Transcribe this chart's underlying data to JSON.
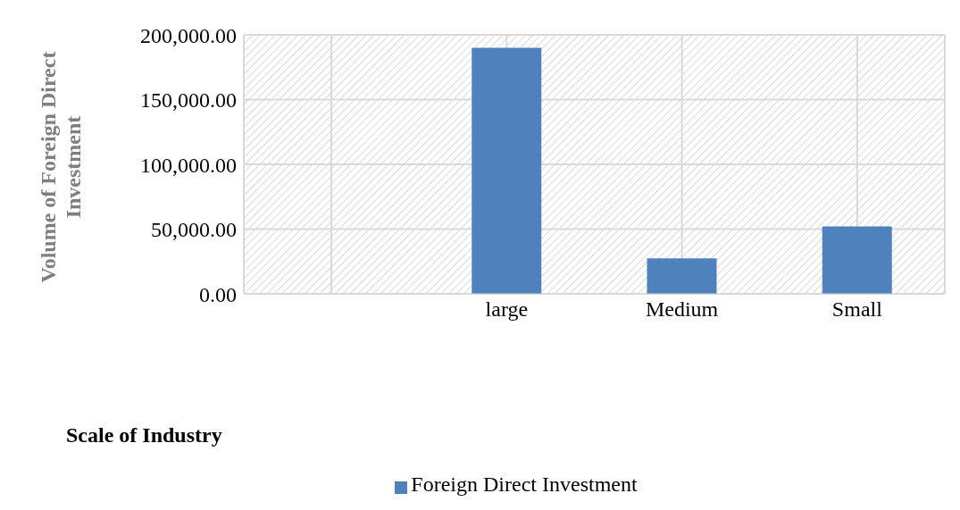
{
  "chart_data": {
    "type": "bar",
    "xlabel": "Scale of Industry",
    "ylabel": "Volume of Foreign Direct Investment",
    "categories": [
      null,
      "large",
      "Medium",
      "Small"
    ],
    "series": [
      {
        "name": "Foreign Direct Investment",
        "color": "#4f81bd",
        "values": [
          null,
          190000,
          27500,
          52000
        ]
      }
    ],
    "ylim": [
      0,
      200000
    ],
    "yticks": [
      {
        "value": 0,
        "label": "0.00"
      },
      {
        "value": 50000,
        "label": "50,000.00"
      },
      {
        "value": 100000,
        "label": "100,000.00"
      },
      {
        "value": 150000,
        "label": "150,000.00"
      },
      {
        "value": 200000,
        "label": "200,000.00"
      }
    ],
    "grid": true,
    "legend": "bottom"
  }
}
